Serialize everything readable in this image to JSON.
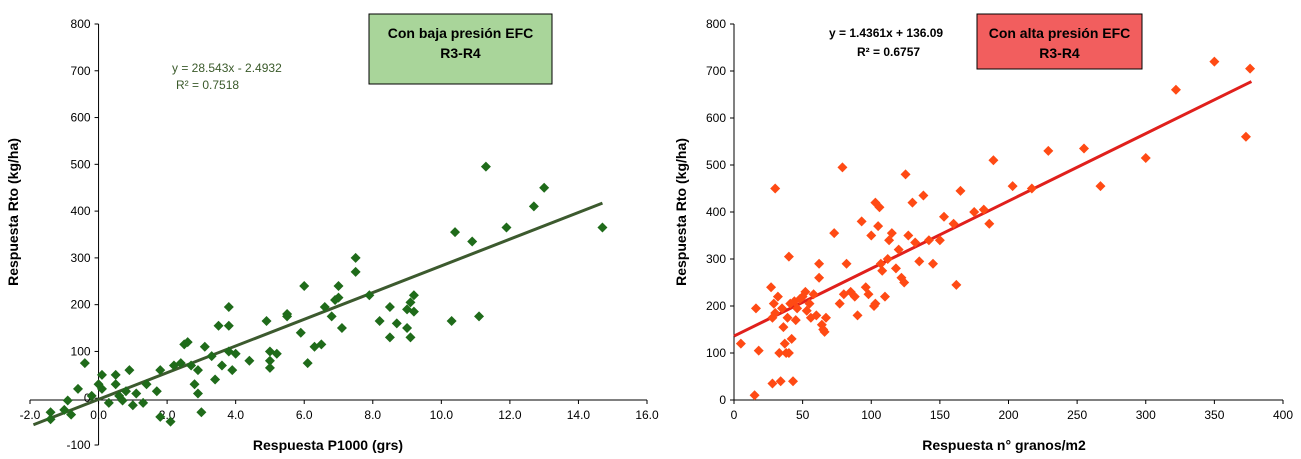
{
  "chart_data": [
    {
      "type": "scatter",
      "xlabel": "Respuesta P1000 (grs)",
      "ylabel": "Respuesta Rto (kg/ha)",
      "xlim": [
        -2,
        16
      ],
      "ylim": [
        -100,
        800
      ],
      "x_ticks": [
        "-2.0",
        "0.0",
        "2.0",
        "4.0",
        "6.0",
        "8.0",
        "10.0",
        "12.0",
        "14.0",
        "16.0"
      ],
      "y_ticks": [
        "-100",
        "0",
        "100",
        "200",
        "300",
        "400",
        "500",
        "600",
        "700",
        "800"
      ],
      "equation": "y = 28.543x - 2.4932",
      "r2": "R² = 0.7518",
      "box_lines": [
        "Con baja presión EFC",
        "R3-R4"
      ],
      "colors": {
        "marker": "#1f6b1a",
        "trendline": "#3c5a2e",
        "box": "#a9d59a"
      },
      "trendline": {
        "slope": 28.543,
        "intercept": -2.4932,
        "x_range": [
          -1.9,
          14.7
        ]
      },
      "points": [
        [
          -1.4,
          -30
        ],
        [
          -1.4,
          -45
        ],
        [
          -1.0,
          -25
        ],
        [
          -0.9,
          -5
        ],
        [
          -0.8,
          -35
        ],
        [
          -0.6,
          20
        ],
        [
          -0.4,
          75
        ],
        [
          -0.2,
          5
        ],
        [
          0.0,
          30
        ],
        [
          0.1,
          50
        ],
        [
          0.1,
          20
        ],
        [
          0.3,
          -10
        ],
        [
          0.5,
          50
        ],
        [
          0.5,
          30
        ],
        [
          0.6,
          5
        ],
        [
          0.7,
          -5
        ],
        [
          0.8,
          15
        ],
        [
          0.9,
          60
        ],
        [
          1.0,
          -15
        ],
        [
          1.1,
          10
        ],
        [
          1.3,
          -10
        ],
        [
          1.4,
          30
        ],
        [
          1.8,
          60
        ],
        [
          1.7,
          15
        ],
        [
          1.8,
          -40
        ],
        [
          2.2,
          70
        ],
        [
          2.1,
          -50
        ],
        [
          2.4,
          75
        ],
        [
          2.5,
          115
        ],
        [
          2.6,
          120
        ],
        [
          2.7,
          70
        ],
        [
          2.8,
          30
        ],
        [
          2.9,
          10
        ],
        [
          2.9,
          60
        ],
        [
          3.0,
          -30
        ],
        [
          3.1,
          110
        ],
        [
          3.3,
          90
        ],
        [
          3.4,
          40
        ],
        [
          3.5,
          155
        ],
        [
          3.6,
          70
        ],
        [
          3.8,
          155
        ],
        [
          3.8,
          195
        ],
        [
          3.8,
          100
        ],
        [
          3.9,
          60
        ],
        [
          4.0,
          95
        ],
        [
          4.4,
          80
        ],
        [
          4.9,
          165
        ],
        [
          5.0,
          100
        ],
        [
          5.0,
          80
        ],
        [
          5.0,
          65
        ],
        [
          5.2,
          95
        ],
        [
          5.5,
          175
        ],
        [
          5.5,
          180
        ],
        [
          5.9,
          140
        ],
        [
          6.0,
          240
        ],
        [
          6.1,
          75
        ],
        [
          6.3,
          110
        ],
        [
          6.5,
          115
        ],
        [
          6.6,
          195
        ],
        [
          6.8,
          175
        ],
        [
          6.9,
          210
        ],
        [
          7.0,
          240
        ],
        [
          7.0,
          215
        ],
        [
          7.1,
          150
        ],
        [
          7.5,
          270
        ],
        [
          7.5,
          300
        ],
        [
          7.9,
          220
        ],
        [
          8.2,
          165
        ],
        [
          8.5,
          130
        ],
        [
          8.5,
          195
        ],
        [
          8.7,
          160
        ],
        [
          9.0,
          190
        ],
        [
          9.0,
          150
        ],
        [
          9.1,
          205
        ],
        [
          9.1,
          130
        ],
        [
          9.2,
          220
        ],
        [
          9.2,
          185
        ],
        [
          10.3,
          165
        ],
        [
          10.4,
          355
        ],
        [
          10.9,
          335
        ],
        [
          11.1,
          175
        ],
        [
          11.3,
          495
        ],
        [
          11.9,
          365
        ],
        [
          12.7,
          410
        ],
        [
          13.0,
          450
        ],
        [
          14.7,
          365
        ]
      ]
    },
    {
      "type": "scatter",
      "xlabel": "Respuesta n° granos/m2",
      "ylabel": "Respuesta Rto (kg/ha)",
      "xlim": [
        0,
        400
      ],
      "ylim": [
        0,
        800
      ],
      "x_ticks": [
        "0",
        "50",
        "100",
        "150",
        "200",
        "250",
        "300",
        "350",
        "400"
      ],
      "y_ticks": [
        "0",
        "100",
        "200",
        "300",
        "400",
        "500",
        "600",
        "700",
        "800"
      ],
      "equation": "y = 1.4361x + 136.09",
      "r2": "R² = 0.6757",
      "box_lines": [
        "Con alta presión EFC",
        "R3-R4"
      ],
      "colors": {
        "marker": "#ff4a14",
        "trendline": "#e0201c",
        "box": "#f25e5e"
      },
      "trendline": {
        "slope": 1.4361,
        "intercept": 136.09,
        "x_range": [
          0,
          377
        ]
      },
      "points": [
        [
          5,
          120
        ],
        [
          15,
          10
        ],
        [
          16,
          195
        ],
        [
          18,
          105
        ],
        [
          27,
          240
        ],
        [
          28,
          35
        ],
        [
          28,
          175
        ],
        [
          29,
          205
        ],
        [
          30,
          450
        ],
        [
          30,
          185
        ],
        [
          32,
          220
        ],
        [
          33,
          100
        ],
        [
          34,
          40
        ],
        [
          35,
          195
        ],
        [
          36,
          155
        ],
        [
          37,
          120
        ],
        [
          38,
          100
        ],
        [
          39,
          175
        ],
        [
          40,
          305
        ],
        [
          40,
          100
        ],
        [
          41,
          205
        ],
        [
          42,
          130
        ],
        [
          43,
          40
        ],
        [
          44,
          210
        ],
        [
          45,
          170
        ],
        [
          46,
          195
        ],
        [
          48,
          215
        ],
        [
          50,
          220
        ],
        [
          52,
          230
        ],
        [
          53,
          190
        ],
        [
          55,
          205
        ],
        [
          56,
          175
        ],
        [
          58,
          225
        ],
        [
          60,
          180
        ],
        [
          62,
          260
        ],
        [
          62,
          290
        ],
        [
          64,
          160
        ],
        [
          65,
          150
        ],
        [
          66,
          145
        ],
        [
          67,
          175
        ],
        [
          73,
          355
        ],
        [
          77,
          205
        ],
        [
          79,
          495
        ],
        [
          80,
          225
        ],
        [
          82,
          290
        ],
        [
          85,
          230
        ],
        [
          88,
          220
        ],
        [
          90,
          180
        ],
        [
          93,
          380
        ],
        [
          96,
          240
        ],
        [
          98,
          225
        ],
        [
          100,
          350
        ],
        [
          102,
          200
        ],
        [
          103,
          420
        ],
        [
          103,
          205
        ],
        [
          105,
          370
        ],
        [
          106,
          410
        ],
        [
          107,
          290
        ],
        [
          108,
          275
        ],
        [
          110,
          220
        ],
        [
          112,
          300
        ],
        [
          113,
          340
        ],
        [
          115,
          355
        ],
        [
          118,
          280
        ],
        [
          120,
          320
        ],
        [
          122,
          260
        ],
        [
          124,
          250
        ],
        [
          125,
          480
        ],
        [
          127,
          350
        ],
        [
          130,
          420
        ],
        [
          132,
          335
        ],
        [
          135,
          295
        ],
        [
          138,
          435
        ],
        [
          142,
          340
        ],
        [
          145,
          290
        ],
        [
          150,
          340
        ],
        [
          153,
          390
        ],
        [
          160,
          375
        ],
        [
          162,
          245
        ],
        [
          165,
          445
        ],
        [
          175,
          400
        ],
        [
          182,
          405
        ],
        [
          186,
          375
        ],
        [
          189,
          510
        ],
        [
          203,
          455
        ],
        [
          217,
          450
        ],
        [
          229,
          530
        ],
        [
          255,
          535
        ],
        [
          267,
          455
        ],
        [
          300,
          515
        ],
        [
          322,
          660
        ],
        [
          350,
          720
        ],
        [
          373,
          560
        ],
        [
          376,
          705
        ]
      ]
    }
  ]
}
